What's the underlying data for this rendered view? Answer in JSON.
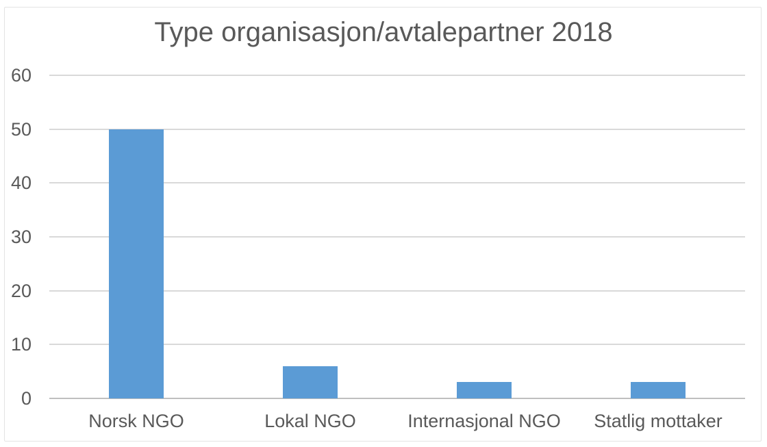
{
  "chart_data": {
    "type": "bar",
    "title": "Type organisasjon/avtalepartner 2018",
    "categories": [
      "Norsk NGO",
      "Lokal NGO",
      "Internasjonal NGO",
      "Statlig mottaker"
    ],
    "values": [
      50,
      6,
      3,
      3
    ],
    "xlabel": "",
    "ylabel": "",
    "ylim": [
      0,
      60
    ],
    "yticks": [
      0,
      10,
      20,
      30,
      40,
      50,
      60
    ],
    "grid": true,
    "legend_position": "none",
    "colors": {
      "bar_fill": "#5b9bd5",
      "gridline": "#d9d9d9",
      "axis_line": "#bfbfbf",
      "text": "#595959",
      "background": "#ffffff",
      "chart_border": "#e3e3e3"
    }
  }
}
